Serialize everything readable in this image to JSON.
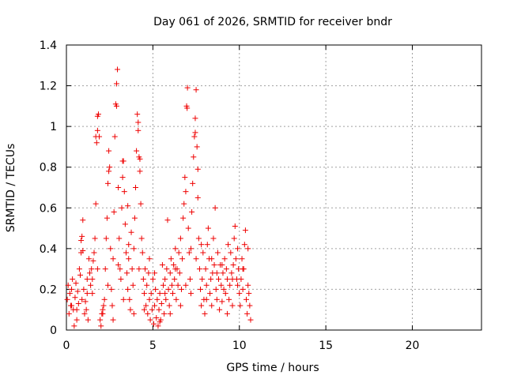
{
  "chart_data": {
    "type": "scatter",
    "title": "Day 061 of 2026, SRMTID for receiver bndr",
    "xlabel": "GPS time / hours",
    "ylabel": "SRMTID / TECUs",
    "xlim": [
      0,
      24
    ],
    "ylim": [
      0,
      1.4
    ],
    "xticks": [
      "0",
      "5",
      "10",
      "15",
      "20"
    ],
    "yticks": [
      "0",
      "0.2",
      "0.4",
      "0.6",
      "0.8",
      "1",
      "1.2",
      "1.4"
    ],
    "grid": true,
    "marker": "+",
    "marker_color": "#ee0000",
    "series": [
      {
        "name": "SRMTID",
        "points": [
          [
            0.05,
            0.15
          ],
          [
            0.1,
            0.22
          ],
          [
            0.15,
            0.08
          ],
          [
            0.2,
            0.18
          ],
          [
            0.25,
            0.12
          ],
          [
            0.3,
            0.2
          ],
          [
            0.35,
            0.25
          ],
          [
            0.4,
            0.1
          ],
          [
            0.45,
            0.02
          ],
          [
            0.5,
            0.16
          ],
          [
            0.55,
            0.23
          ],
          [
            0.6,
            0.05
          ],
          [
            0.65,
            0.19
          ],
          [
            0.7,
            0.13
          ],
          [
            0.75,
            0.3
          ],
          [
            0.8,
            0.27
          ],
          [
            0.85,
            0.38
          ],
          [
            0.9,
            0.46
          ],
          [
            0.95,
            0.54
          ],
          [
            1.0,
            0.2
          ],
          [
            1.05,
            0.08
          ],
          [
            1.1,
            0.14
          ],
          [
            1.15,
            0.1
          ],
          [
            1.2,
            0.18
          ],
          [
            1.25,
            0.05
          ],
          [
            1.3,
            0.35
          ],
          [
            1.35,
            0.28
          ],
          [
            1.4,
            0.22
          ],
          [
            1.45,
            0.3
          ],
          [
            1.5,
            0.25
          ],
          [
            1.55,
            0.34
          ],
          [
            1.6,
            0.38
          ],
          [
            1.65,
            0.45
          ],
          [
            1.7,
            0.62
          ],
          [
            1.75,
            0.92
          ],
          [
            1.8,
            0.98
          ],
          [
            1.85,
            1.06
          ],
          [
            1.9,
            0.95
          ],
          [
            1.95,
            0.05
          ],
          [
            2.0,
            0.02
          ],
          [
            2.05,
            0.08
          ],
          [
            2.1,
            0.1
          ],
          [
            2.15,
            0.12
          ],
          [
            2.2,
            0.15
          ],
          [
            2.25,
            0.3
          ],
          [
            2.3,
            0.45
          ],
          [
            2.35,
            0.55
          ],
          [
            2.4,
            0.72
          ],
          [
            2.45,
            0.88
          ],
          [
            2.5,
            0.8
          ],
          [
            2.55,
            0.4
          ],
          [
            2.6,
            0.2
          ],
          [
            2.65,
            0.12
          ],
          [
            2.7,
            0.35
          ],
          [
            2.75,
            0.58
          ],
          [
            2.8,
            0.95
          ],
          [
            2.85,
            1.11
          ],
          [
            2.9,
            1.21
          ],
          [
            2.95,
            1.28
          ],
          [
            3.0,
            0.7
          ],
          [
            3.05,
            0.45
          ],
          [
            3.1,
            0.3
          ],
          [
            3.15,
            0.25
          ],
          [
            3.2,
            0.6
          ],
          [
            3.25,
            0.75
          ],
          [
            3.3,
            0.83
          ],
          [
            3.35,
            0.68
          ],
          [
            3.4,
            0.52
          ],
          [
            3.45,
            0.38
          ],
          [
            3.5,
            0.28
          ],
          [
            3.55,
            0.2
          ],
          [
            3.6,
            0.35
          ],
          [
            3.65,
            0.15
          ],
          [
            3.7,
            0.1
          ],
          [
            3.75,
            0.48
          ],
          [
            3.8,
            0.3
          ],
          [
            3.85,
            0.22
          ],
          [
            3.9,
            0.4
          ],
          [
            3.95,
            0.55
          ],
          [
            4.0,
            0.7
          ],
          [
            4.05,
            0.88
          ],
          [
            4.1,
            1.06
          ],
          [
            4.15,
            0.98
          ],
          [
            4.2,
            0.85
          ],
          [
            4.25,
            0.78
          ],
          [
            4.3,
            0.62
          ],
          [
            4.35,
            0.45
          ],
          [
            4.4,
            0.38
          ],
          [
            4.45,
            0.25
          ],
          [
            4.5,
            0.18
          ],
          [
            4.55,
            0.3
          ],
          [
            4.6,
            0.12
          ],
          [
            4.65,
            0.22
          ],
          [
            4.7,
            0.08
          ],
          [
            4.75,
            0.28
          ],
          [
            4.8,
            0.15
          ],
          [
            4.85,
            0.05
          ],
          [
            4.9,
            0.18
          ],
          [
            4.95,
            0.1
          ],
          [
            5.0,
            0.25
          ],
          [
            5.05,
            0.03
          ],
          [
            5.1,
            0.12
          ],
          [
            5.15,
            0.2
          ],
          [
            5.2,
            0.06
          ],
          [
            5.25,
            0.15
          ],
          [
            5.3,
            0.02
          ],
          [
            5.35,
            0.1
          ],
          [
            5.4,
            0.18
          ],
          [
            5.45,
            0.05
          ],
          [
            5.5,
            0.13
          ],
          [
            5.55,
            0.32
          ],
          [
            5.6,
            0.22
          ],
          [
            5.65,
            0.08
          ],
          [
            5.7,
            0.25
          ],
          [
            5.75,
            0.15
          ],
          [
            5.8,
            0.3
          ],
          [
            5.85,
            0.54
          ],
          [
            5.9,
            0.2
          ],
          [
            5.95,
            0.12
          ],
          [
            6.0,
            0.28
          ],
          [
            6.05,
            0.35
          ],
          [
            6.1,
            0.22
          ],
          [
            6.15,
            0.18
          ],
          [
            6.2,
            0.32
          ],
          [
            6.25,
            0.25
          ],
          [
            6.3,
            0.4
          ],
          [
            6.35,
            0.15
          ],
          [
            6.4,
            0.3
          ],
          [
            6.45,
            0.22
          ],
          [
            6.5,
            0.38
          ],
          [
            6.55,
            0.28
          ],
          [
            6.6,
            0.45
          ],
          [
            6.65,
            0.2
          ],
          [
            6.7,
            0.35
          ],
          [
            6.75,
            0.55
          ],
          [
            6.8,
            0.62
          ],
          [
            6.85,
            0.75
          ],
          [
            6.9,
            0.68
          ],
          [
            6.95,
            1.1
          ],
          [
            7.0,
            1.19
          ],
          [
            7.05,
            0.5
          ],
          [
            7.1,
            0.38
          ],
          [
            7.15,
            0.25
          ],
          [
            7.2,
            0.4
          ],
          [
            7.25,
            0.58
          ],
          [
            7.3,
            0.72
          ],
          [
            7.35,
            0.85
          ],
          [
            7.4,
            0.95
          ],
          [
            7.45,
            1.04
          ],
          [
            7.5,
            1.18
          ],
          [
            7.55,
            0.9
          ],
          [
            7.6,
            0.65
          ],
          [
            7.65,
            0.45
          ],
          [
            7.7,
            0.3
          ],
          [
            7.75,
            0.2
          ],
          [
            7.8,
            0.12
          ],
          [
            7.85,
            0.25
          ],
          [
            7.9,
            0.38
          ],
          [
            7.95,
            0.15
          ],
          [
            8.0,
            0.08
          ],
          [
            8.05,
            0.3
          ],
          [
            8.1,
            0.22
          ],
          [
            8.15,
            0.42
          ],
          [
            8.2,
            0.5
          ],
          [
            8.25,
            0.35
          ],
          [
            8.3,
            0.18
          ],
          [
            8.35,
            0.25
          ],
          [
            8.4,
            0.12
          ],
          [
            8.45,
            0.28
          ],
          [
            8.5,
            0.45
          ],
          [
            8.55,
            0.32
          ],
          [
            8.6,
            0.6
          ],
          [
            8.65,
            0.2
          ],
          [
            8.7,
            0.15
          ],
          [
            8.75,
            0.38
          ],
          [
            8.8,
            0.25
          ],
          [
            8.85,
            0.1
          ],
          [
            8.9,
            0.32
          ],
          [
            8.95,
            0.22
          ],
          [
            9.0,
            0.14
          ],
          [
            9.05,
            0.28
          ],
          [
            9.1,
            0.2
          ],
          [
            9.15,
            0.35
          ],
          [
            9.2,
            0.18
          ],
          [
            9.25,
            0.3
          ],
          [
            9.3,
            0.25
          ],
          [
            9.35,
            0.42
          ],
          [
            9.4,
            0.15
          ],
          [
            9.45,
            0.22
          ],
          [
            9.5,
            0.38
          ],
          [
            9.55,
            0.28
          ],
          [
            9.6,
            0.12
          ],
          [
            9.65,
            0.32
          ],
          [
            9.7,
            0.45
          ],
          [
            9.75,
            0.51
          ],
          [
            9.8,
            0.35
          ],
          [
            9.85,
            0.25
          ],
          [
            9.9,
            0.4
          ],
          [
            9.95,
            0.3
          ],
          [
            10.0,
            0.18
          ],
          [
            10.05,
            0.12
          ],
          [
            10.1,
            0.25
          ],
          [
            10.15,
            0.35
          ],
          [
            10.2,
            0.2
          ],
          [
            10.25,
            0.3
          ],
          [
            10.3,
            0.42
          ],
          [
            10.35,
            0.49
          ],
          [
            10.4,
            0.15
          ],
          [
            10.45,
            0.08
          ],
          [
            10.5,
            0.22
          ],
          [
            10.55,
            0.18
          ],
          [
            10.6,
            0.12
          ],
          [
            10.65,
            0.05
          ],
          [
            0.3,
            0.12
          ],
          [
            0.6,
            0.1
          ],
          [
            0.9,
            0.15
          ],
          [
            1.2,
            0.25
          ],
          [
            1.5,
            0.18
          ],
          [
            1.8,
            0.3
          ],
          [
            2.1,
            0.08
          ],
          [
            2.4,
            0.22
          ],
          [
            2.7,
            0.05
          ],
          [
            3.0,
            0.32
          ],
          [
            3.3,
            0.15
          ],
          [
            3.6,
            0.42
          ],
          [
            3.9,
            0.08
          ],
          [
            4.2,
            0.3
          ],
          [
            4.5,
            0.1
          ],
          [
            4.8,
            0.35
          ],
          [
            5.1,
            0.28
          ],
          [
            5.4,
            0.04
          ],
          [
            5.7,
            0.18
          ],
          [
            6.0,
            0.08
          ],
          [
            6.3,
            0.3
          ],
          [
            6.6,
            0.12
          ],
          [
            6.9,
            0.22
          ],
          [
            7.2,
            0.18
          ],
          [
            7.5,
            0.35
          ],
          [
            7.8,
            0.42
          ],
          [
            8.1,
            0.15
          ],
          [
            8.4,
            0.35
          ],
          [
            8.7,
            0.28
          ],
          [
            9.0,
            0.32
          ],
          [
            9.3,
            0.08
          ],
          [
            9.6,
            0.25
          ],
          [
            9.9,
            0.22
          ],
          [
            10.2,
            0.3
          ],
          [
            10.5,
            0.4
          ],
          [
            1.7,
            0.95
          ],
          [
            1.8,
            1.05
          ],
          [
            2.9,
            1.1
          ],
          [
            4.15,
            1.02
          ],
          [
            4.25,
            0.84
          ],
          [
            6.98,
            1.09
          ],
          [
            7.45,
            0.97
          ],
          [
            7.6,
            0.79
          ],
          [
            3.25,
            0.83
          ],
          [
            2.45,
            0.78
          ],
          [
            3.55,
            0.61
          ],
          [
            0.85,
            0.44
          ],
          [
            0.95,
            0.39
          ]
        ]
      }
    ]
  }
}
